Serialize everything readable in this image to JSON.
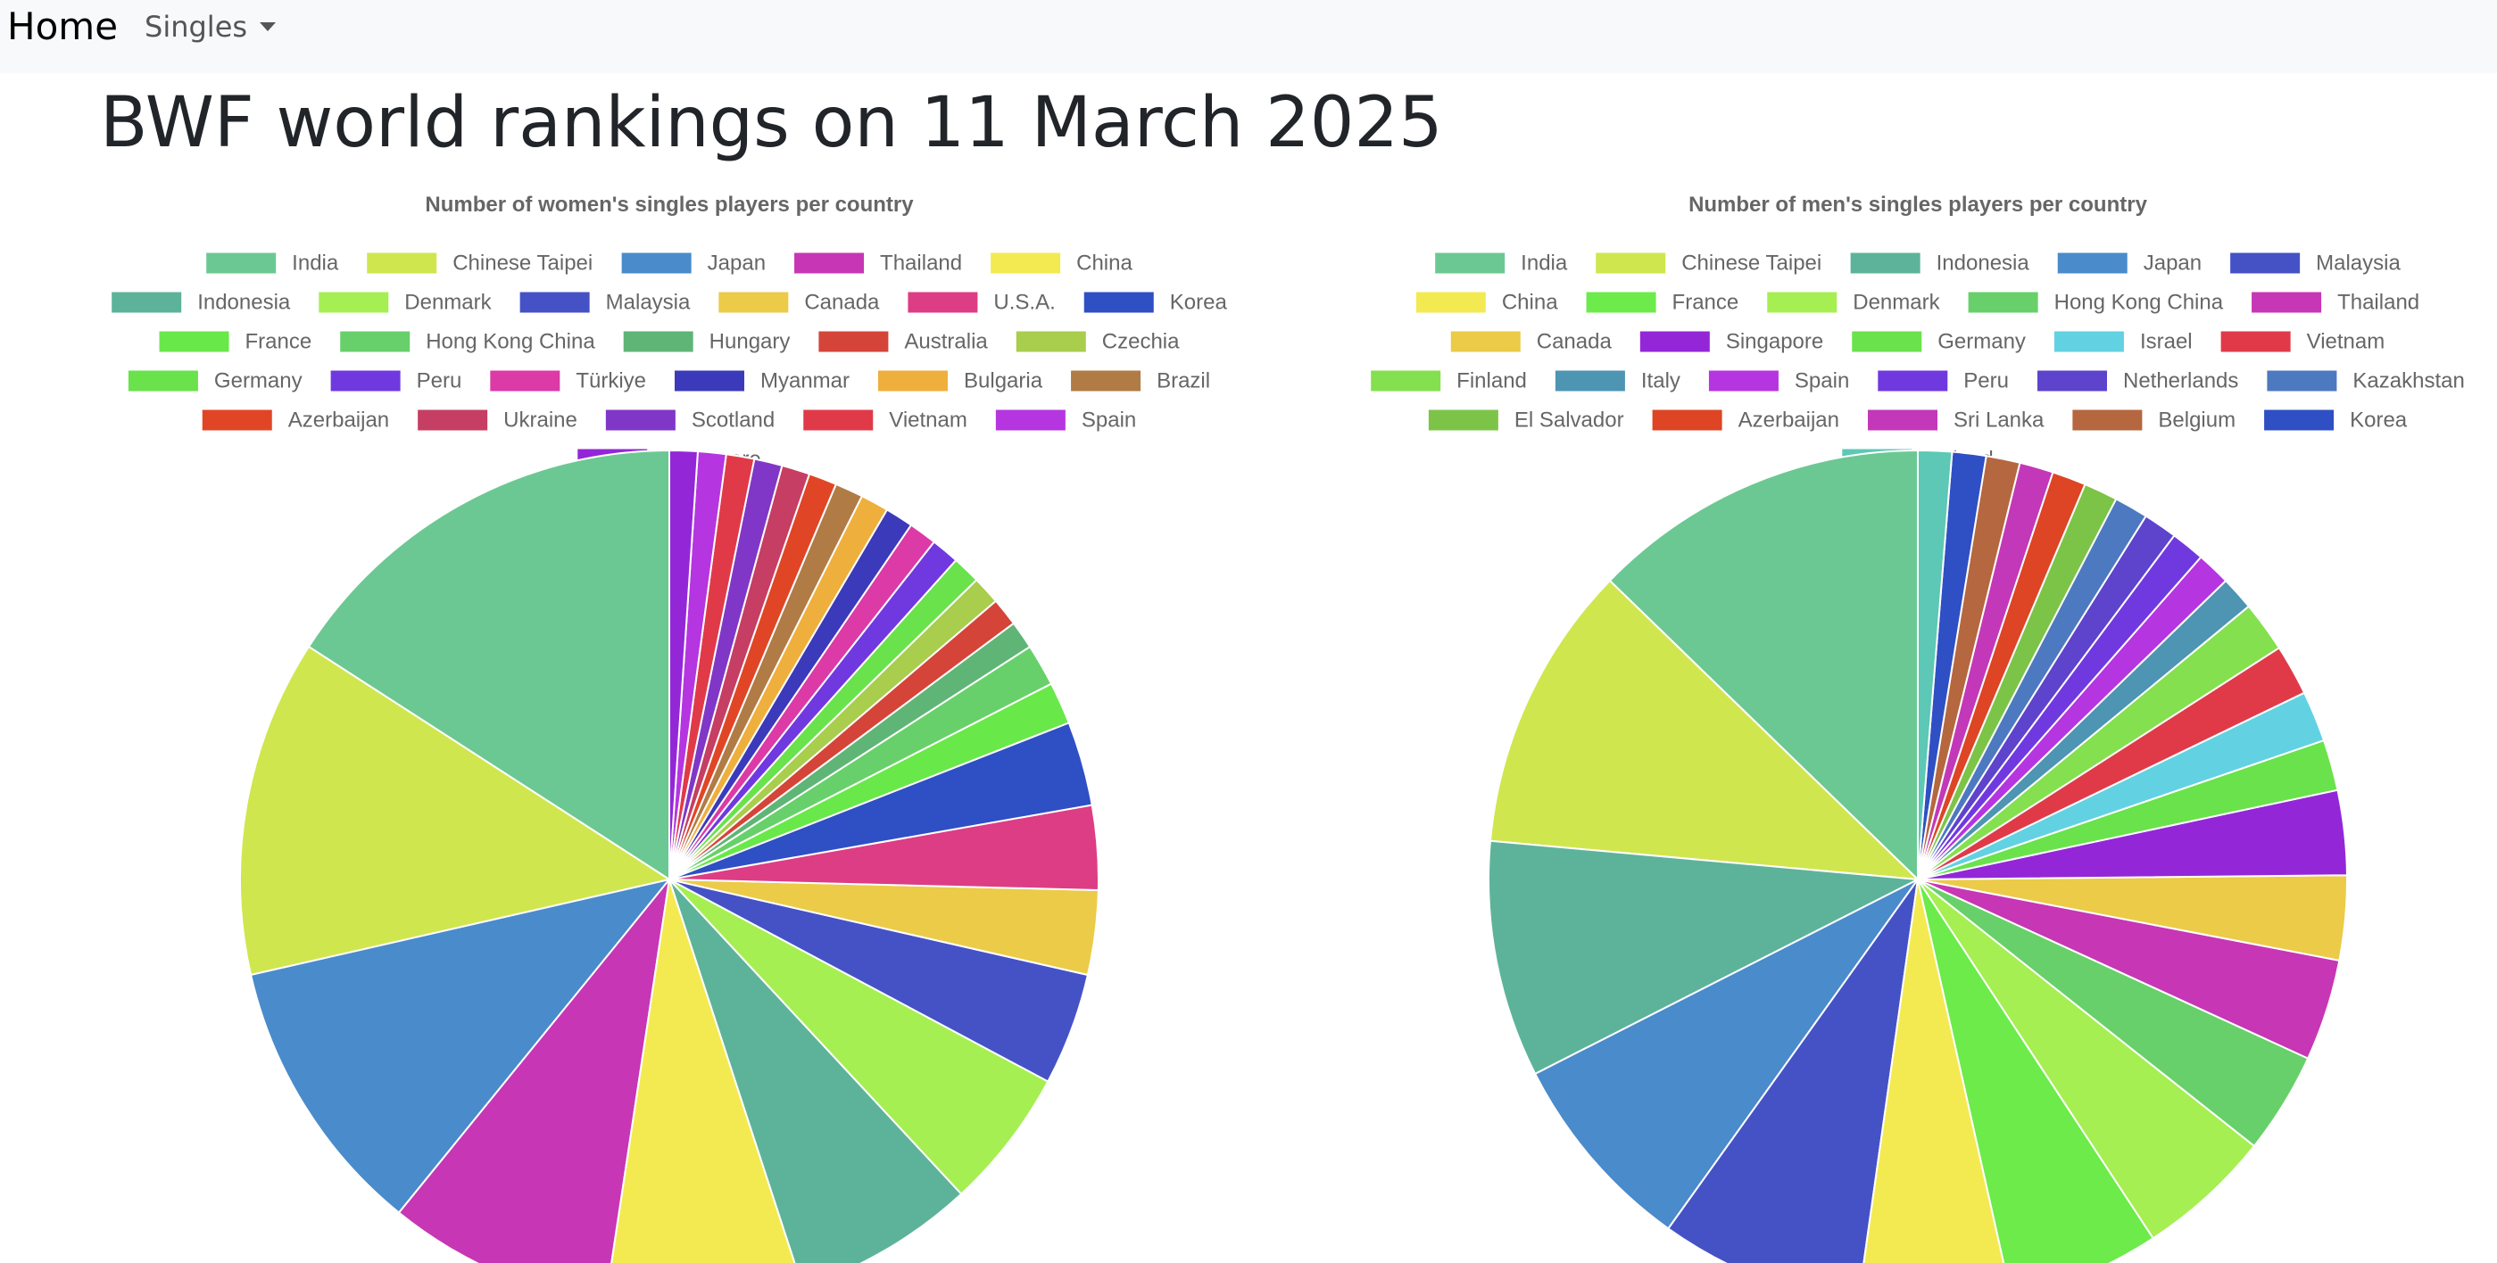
{
  "nav": {
    "brand": "Home",
    "dropdown_label": "Singles"
  },
  "page": {
    "title": "BWF world rankings on 11 March 2025"
  },
  "chart_data": [
    {
      "type": "pie",
      "title": "Number of women's singles players per country",
      "legend_position": "top",
      "categories": [
        "India",
        "Chinese Taipei",
        "Japan",
        "Thailand",
        "China",
        "Indonesia",
        "Denmark",
        "Malaysia",
        "Canada",
        "U.S.A.",
        "Korea",
        "France",
        "Hong Kong China",
        "Hungary",
        "Australia",
        "Czechia",
        "Germany",
        "Peru",
        "Türkiye",
        "Myanmar",
        "Bulgaria",
        "Brazil",
        "Azerbaijan",
        "Ukraine",
        "Scotland",
        "Vietnam",
        "Spain",
        "Singapore"
      ],
      "values": [
        30,
        24,
        20,
        16,
        14,
        13,
        10,
        8,
        6,
        6,
        6,
        3,
        3,
        2,
        2,
        2,
        2,
        2,
        2,
        2,
        2,
        2,
        2,
        2,
        2,
        2,
        2,
        2
      ],
      "colors": [
        "#6cc893",
        "#d0e64e",
        "#4a8bcb",
        "#c736b5",
        "#f3ea52",
        "#5db39a",
        "#a5ef52",
        "#4552c6",
        "#ebcb48",
        "#dd3d84",
        "#2f4fc4",
        "#69e849",
        "#68d06a",
        "#5fb576",
        "#d54438",
        "#a9cd4c",
        "#69e24c",
        "#7039e0",
        "#dc3aa6",
        "#3b3abb",
        "#efaf3d",
        "#b07b45",
        "#e04625",
        "#c63e63",
        "#8037c8",
        "#e03a49",
        "#b535e0",
        "#9327d8"
      ]
    },
    {
      "type": "pie",
      "title": "Number of men's singles players per country",
      "legend_position": "top",
      "categories": [
        "India",
        "Chinese Taipei",
        "Indonesia",
        "Japan",
        "Malaysia",
        "China",
        "France",
        "Denmark",
        "Hong Kong China",
        "Thailand",
        "Canada",
        "Singapore",
        "Germany",
        "Israel",
        "Vietnam",
        "Finland",
        "Italy",
        "Spain",
        "Peru",
        "Netherlands",
        "Kazakhstan",
        "El Salvador",
        "Azerbaijan",
        "Sri Lanka",
        "Belgium",
        "Korea",
        "Ireland"
      ],
      "values": [
        20,
        17,
        14,
        12,
        12,
        9,
        9,
        8,
        6,
        6,
        5,
        5,
        3,
        3,
        3,
        3,
        2,
        2,
        2,
        2,
        2,
        2,
        2,
        2,
        2,
        2,
        2
      ],
      "colors": [
        "#6cc893",
        "#d0e64e",
        "#5db39a",
        "#4a8bcb",
        "#4552c6",
        "#f3ea52",
        "#6ceb4b",
        "#a5ef52",
        "#68d06a",
        "#c736b5",
        "#ebcb48",
        "#9327d8",
        "#69e24c",
        "#62d2e2",
        "#e03a49",
        "#84e04e",
        "#4e94b3",
        "#b535e0",
        "#7039e0",
        "#5e43cc",
        "#4d79c0",
        "#7cc447",
        "#dd4525",
        "#c338b8",
        "#b5673f",
        "#2f4fc4",
        "#5cc8b5"
      ]
    }
  ]
}
